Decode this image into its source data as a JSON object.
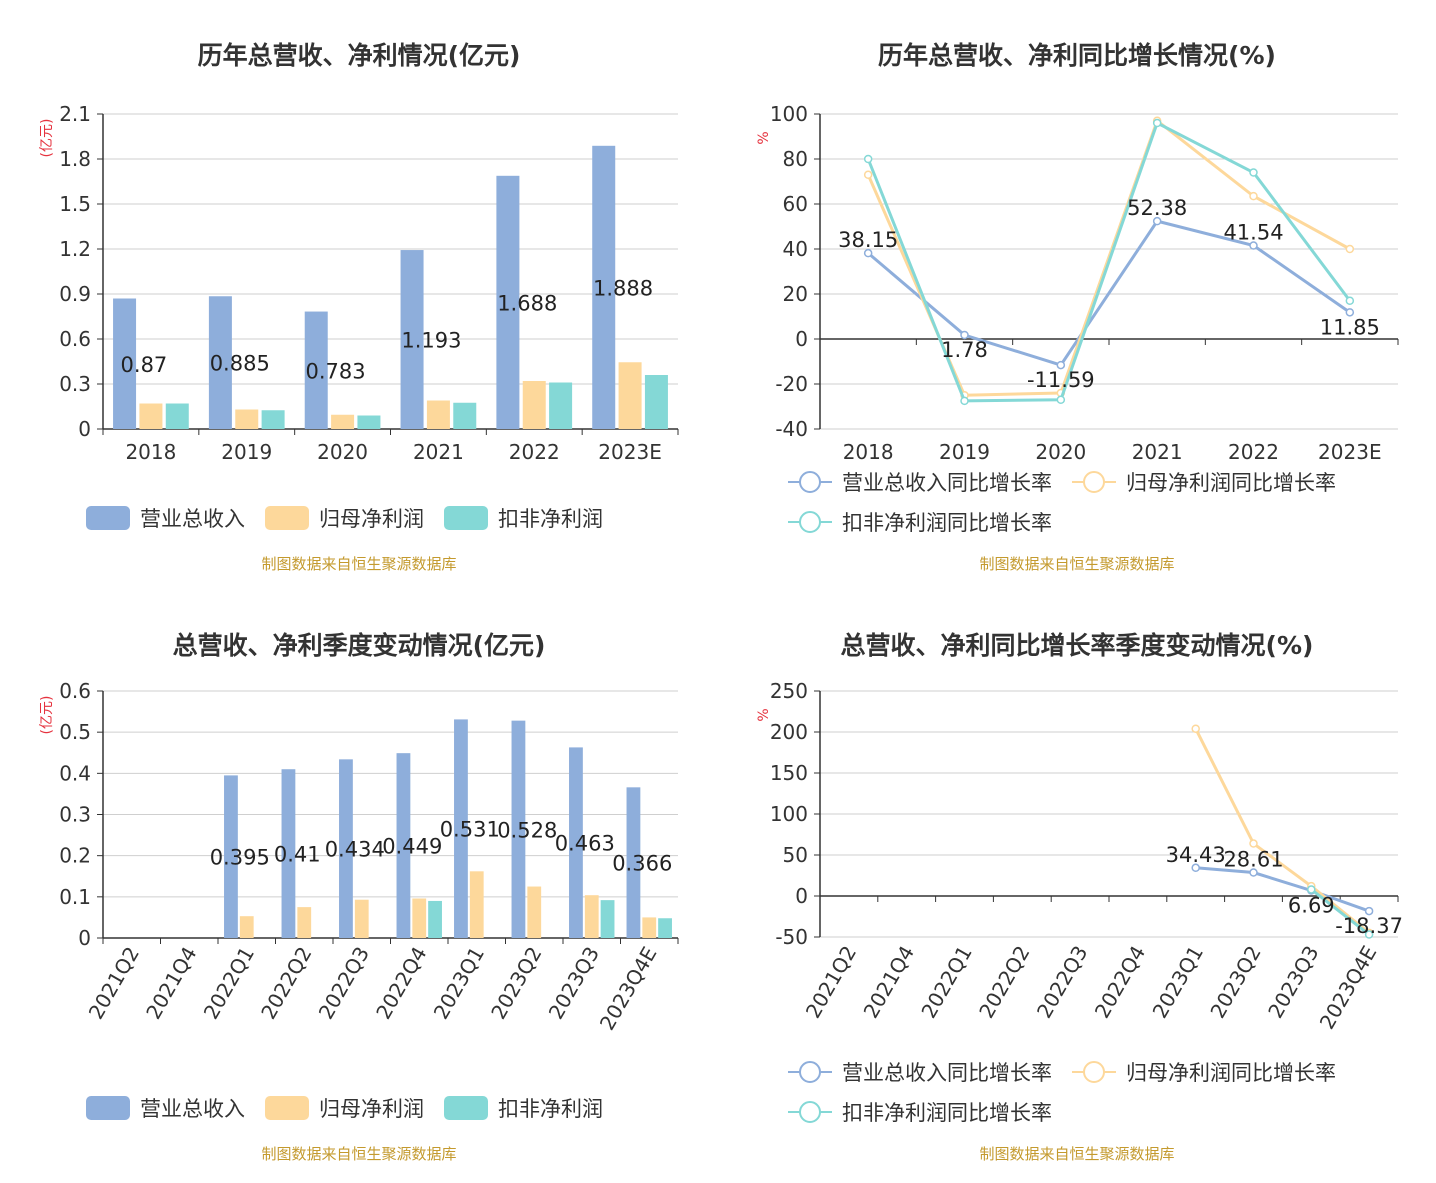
{
  "source_note": "制图数据来自恒生聚源数据库",
  "colors": {
    "revenue": "#8eaedb",
    "parent_profit": "#fdd89b",
    "deducted_profit": "#84d8d6"
  },
  "chart_data": [
    {
      "type": "bar",
      "title": "历年总营收、净利情况(亿元)",
      "ylabel": "(亿元)",
      "ylim": [
        0,
        2.1
      ],
      "yticks": [
        0,
        0.3,
        0.6,
        0.9,
        1.2,
        1.5,
        1.8,
        2.1
      ],
      "grid": true,
      "legend": "bottom",
      "categories": [
        "2018",
        "2019",
        "2020",
        "2021",
        "2022",
        "2023E"
      ],
      "series": [
        {
          "name": "营业总收入",
          "values": [
            0.87,
            0.885,
            0.783,
            1.193,
            1.688,
            1.888
          ],
          "labels": [
            "0.87",
            "0.885",
            "0.783",
            "1.193",
            "1.688",
            "1.888"
          ]
        },
        {
          "name": "归母净利润",
          "values": [
            0.17,
            0.13,
            0.095,
            0.19,
            0.32,
            0.445
          ]
        },
        {
          "name": "扣非净利润",
          "values": [
            0.17,
            0.125,
            0.09,
            0.175,
            0.31,
            0.36
          ]
        }
      ]
    },
    {
      "type": "line",
      "title": "历年总营收、净利同比增长情况(%)",
      "ylabel": "%",
      "ylim": [
        -40,
        100
      ],
      "yticks": [
        -40,
        -20,
        0,
        20,
        40,
        60,
        80,
        100
      ],
      "grid": true,
      "legend": "bottom",
      "categories": [
        "2018",
        "2019",
        "2020",
        "2021",
        "2022",
        "2023E"
      ],
      "series": [
        {
          "name": "营业总收入同比增长率",
          "values": [
            38.15,
            1.78,
            -11.59,
            52.38,
            41.54,
            11.85
          ],
          "labels": [
            "38.15",
            "1.78",
            "-11.59",
            "52.38",
            "41.54",
            "11.85"
          ]
        },
        {
          "name": "归母净利润同比增长率",
          "values": [
            73,
            -25,
            -24,
            97,
            63.5,
            40
          ]
        },
        {
          "name": "扣非净利润同比增长率",
          "values": [
            80,
            -27.5,
            -27,
            96,
            74,
            17
          ]
        }
      ]
    },
    {
      "type": "bar",
      "title": "总营收、净利季度变动情况(亿元)",
      "ylabel": "(亿元)",
      "ylim": [
        0,
        0.6
      ],
      "yticks": [
        0,
        0.1,
        0.2,
        0.3,
        0.4,
        0.5,
        0.6
      ],
      "grid": true,
      "legend": "bottom",
      "categories": [
        "2021Q2",
        "2021Q4",
        "2022Q1",
        "2022Q2",
        "2022Q3",
        "2022Q4",
        "2023Q1",
        "2023Q2",
        "2023Q3",
        "2023Q4E"
      ],
      "series": [
        {
          "name": "营业总收入",
          "values": [
            null,
            null,
            0.395,
            0.41,
            0.434,
            0.449,
            0.531,
            0.528,
            0.463,
            0.366
          ],
          "labels": [
            null,
            null,
            "0.395",
            "0.41",
            "0.434",
            "0.449",
            "0.531",
            "0.528",
            "0.463",
            "0.366"
          ]
        },
        {
          "name": "归母净利润",
          "values": [
            null,
            null,
            0.053,
            0.075,
            0.093,
            0.096,
            0.162,
            0.125,
            0.104,
            0.05
          ]
        },
        {
          "name": "扣非净利润",
          "values": [
            null,
            null,
            null,
            null,
            null,
            0.09,
            null,
            null,
            0.092,
            0.048
          ]
        }
      ]
    },
    {
      "type": "line",
      "title": "总营收、净利同比增长率季度变动情况(%)",
      "ylabel": "%",
      "ylim": [
        -50,
        250
      ],
      "yticks": [
        -50,
        0,
        50,
        100,
        150,
        200,
        250
      ],
      "grid": true,
      "legend": "bottom",
      "categories": [
        "2021Q2",
        "2021Q4",
        "2022Q1",
        "2022Q2",
        "2022Q3",
        "2022Q4",
        "2023Q1",
        "2023Q2",
        "2023Q3",
        "2023Q4E"
      ],
      "series": [
        {
          "name": "营业总收入同比增长率",
          "values": [
            null,
            null,
            null,
            null,
            null,
            null,
            34.43,
            28.61,
            6.69,
            -18.37
          ],
          "labels": [
            null,
            null,
            null,
            null,
            null,
            null,
            "34.43",
            "28.61",
            "6.69",
            "-18.37"
          ]
        },
        {
          "name": "归母净利润同比增长率",
          "values": [
            null,
            null,
            null,
            null,
            null,
            null,
            204,
            64,
            12,
            -45
          ]
        },
        {
          "name": "扣非净利润同比增长率",
          "values": [
            null,
            null,
            null,
            null,
            null,
            null,
            null,
            null,
            8,
            -47
          ]
        }
      ]
    }
  ]
}
